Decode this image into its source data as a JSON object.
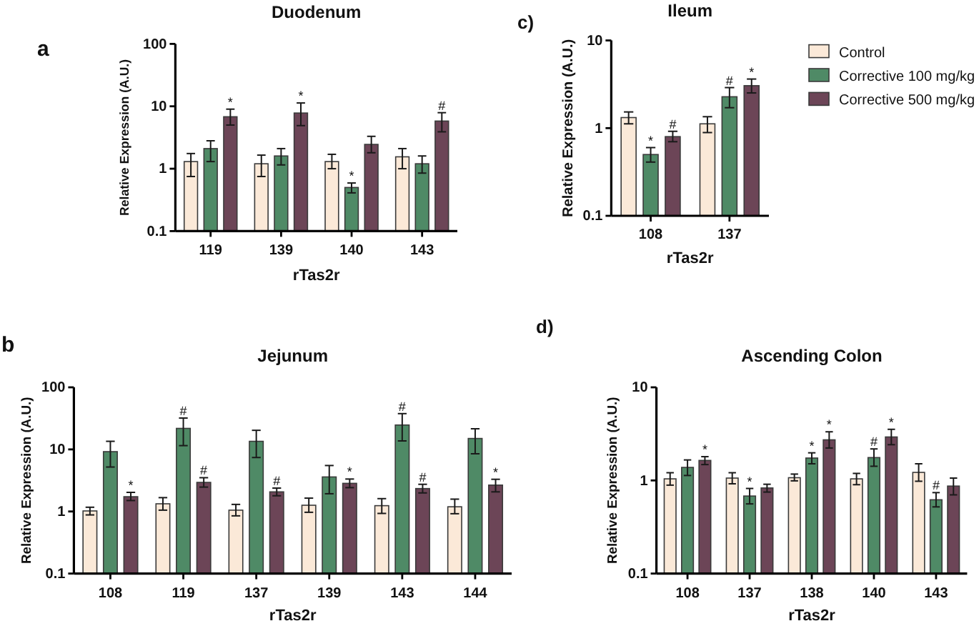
{
  "chart_data": [
    {
      "type": "bar",
      "title": "Duodenum",
      "xlabel": "rTas2r",
      "ylabel": "Relative Expression (A.U.)",
      "annotations": [
        "a"
      ],
      "categories": [
        "119",
        "139",
        "140",
        "143"
      ],
      "log": true,
      "ylim": [
        0.1,
        100
      ],
      "yticks": [
        0.1,
        1,
        10,
        100
      ],
      "series": [
        {
          "color": "#fbe9d8",
          "values": [
            1.3,
            1.2,
            1.3,
            1.55
          ],
          "errors": [
            [
              0.75,
              1.75
            ],
            [
              0.75,
              1.65
            ],
            [
              1.0,
              1.7
            ],
            [
              1.0,
              2.1
            ]
          ]
        },
        {
          "color": "#4f8a66",
          "values": [
            2.1,
            1.6,
            0.5,
            1.2
          ],
          "errors": [
            [
              1.3,
              2.8
            ],
            [
              1.15,
              2.1
            ],
            [
              0.41,
              0.59
            ],
            [
              0.85,
              1.6
            ]
          ],
          "value_labels": [
            null,
            null,
            "*",
            null
          ]
        },
        {
          "color": "#6c4557",
          "values": [
            6.8,
            7.8,
            2.45,
            5.8
          ],
          "errors": [
            [
              5.0,
              9.0
            ],
            [
              4.9,
              11.3
            ],
            [
              1.8,
              3.3
            ],
            [
              3.9,
              7.9
            ]
          ],
          "value_labels": [
            "*",
            "*",
            null,
            "#"
          ]
        }
      ]
    },
    {
      "type": "bar",
      "title": "Ileum",
      "xlabel": "rTas2r",
      "ylabel": "Relative Expression (A.U.)",
      "annotations": [
        "c)"
      ],
      "categories": [
        "108",
        "137"
      ],
      "log": true,
      "ylim": [
        0.1,
        10
      ],
      "yticks": [
        0.1,
        1,
        10
      ],
      "legend": "right",
      "series": [
        {
          "name": "Control",
          "color": "#fbe9d8",
          "values": [
            1.32,
            1.12
          ],
          "errors": [
            [
              1.12,
              1.53
            ],
            [
              0.89,
              1.35
            ]
          ]
        },
        {
          "name": "Corrective 100 mg/kg",
          "color": "#4f8a66",
          "values": [
            0.5,
            2.28
          ],
          "errors": [
            [
              0.41,
              0.6
            ],
            [
              1.71,
              2.9
            ]
          ],
          "value_labels": [
            "*",
            "#"
          ]
        },
        {
          "name": "Corrective 500 mg/kg",
          "color": "#6c4557",
          "values": [
            0.8,
            3.05
          ],
          "errors": [
            [
              0.7,
              0.92
            ],
            [
              2.52,
              3.63
            ]
          ],
          "value_labels": [
            "#",
            "*"
          ]
        }
      ]
    },
    {
      "type": "bar",
      "title": "Jejunum",
      "xlabel": "rTas2r",
      "ylabel": "Relative Expression (A.U.)",
      "annotations": [
        "b"
      ],
      "categories": [
        "108",
        "119",
        "137",
        "139",
        "143",
        "144"
      ],
      "log": true,
      "ylim": [
        0.1,
        100
      ],
      "yticks": [
        0.1,
        1,
        10,
        100
      ],
      "series": [
        {
          "color": "#fbe9d8",
          "values": [
            1.02,
            1.33,
            1.05,
            1.26,
            1.24,
            1.19
          ],
          "errors": [
            [
              0.88,
              1.17
            ],
            [
              1.05,
              1.67
            ],
            [
              0.85,
              1.3
            ],
            [
              0.97,
              1.64
            ],
            [
              0.93,
              1.61
            ],
            [
              0.92,
              1.58
            ]
          ]
        },
        {
          "color": "#4f8a66",
          "values": [
            9.2,
            21.8,
            13.5,
            3.6,
            24.7,
            15.0
          ],
          "errors": [
            [
              5.2,
              13.5
            ],
            [
              11.5,
              32
            ],
            [
              7.4,
              20.3
            ],
            [
              1.93,
              5.5
            ],
            [
              13.7,
              37.7
            ],
            [
              8.5,
              21.5
            ]
          ],
          "value_labels": [
            null,
            "#",
            null,
            null,
            "#",
            null
          ]
        },
        {
          "color": "#6c4557",
          "values": [
            1.73,
            2.94,
            2.07,
            2.84,
            2.34,
            2.66
          ],
          "errors": [
            [
              1.5,
              2.03
            ],
            [
              2.47,
              3.5
            ],
            [
              1.79,
              2.38
            ],
            [
              2.42,
              3.33
            ],
            [
              1.99,
              2.74
            ],
            [
              2.07,
              3.3
            ]
          ],
          "value_labels": [
            "*",
            "#",
            "#",
            "*",
            "#",
            "*"
          ]
        }
      ]
    },
    {
      "type": "bar",
      "title": "Ascending Colon",
      "xlabel": "rTas2r",
      "ylabel": "Relative Expression (A.U.)",
      "annotations": [
        "d)"
      ],
      "categories": [
        "108",
        "137",
        "138",
        "140",
        "143"
      ],
      "log": true,
      "ylim": [
        0.1,
        10
      ],
      "yticks": [
        0.1,
        1,
        10
      ],
      "series": [
        {
          "color": "#fbe9d8",
          "values": [
            1.04,
            1.06,
            1.07,
            1.04,
            1.22
          ],
          "errors": [
            [
              0.89,
              1.21
            ],
            [
              0.92,
              1.21
            ],
            [
              0.99,
              1.17
            ],
            [
              0.9,
              1.19
            ],
            [
              0.98,
              1.51
            ]
          ]
        },
        {
          "color": "#4f8a66",
          "values": [
            1.38,
            0.68,
            1.74,
            1.76,
            0.62
          ],
          "errors": [
            [
              1.13,
              1.66
            ],
            [
              0.56,
              0.82
            ],
            [
              1.51,
              1.98
            ],
            [
              1.42,
              2.18
            ],
            [
              0.52,
              0.74
            ]
          ],
          "value_labels": [
            null,
            "*",
            "*",
            "#",
            "#"
          ]
        },
        {
          "color": "#6c4557",
          "values": [
            1.64,
            0.83,
            2.73,
            2.93,
            0.87
          ],
          "errors": [
            [
              1.48,
              1.8
            ],
            [
              0.75,
              0.91
            ],
            [
              2.23,
              3.33
            ],
            [
              2.42,
              3.54
            ],
            [
              0.7,
              1.06
            ]
          ],
          "value_labels": [
            "*",
            null,
            "*",
            "*",
            null
          ]
        }
      ]
    }
  ]
}
